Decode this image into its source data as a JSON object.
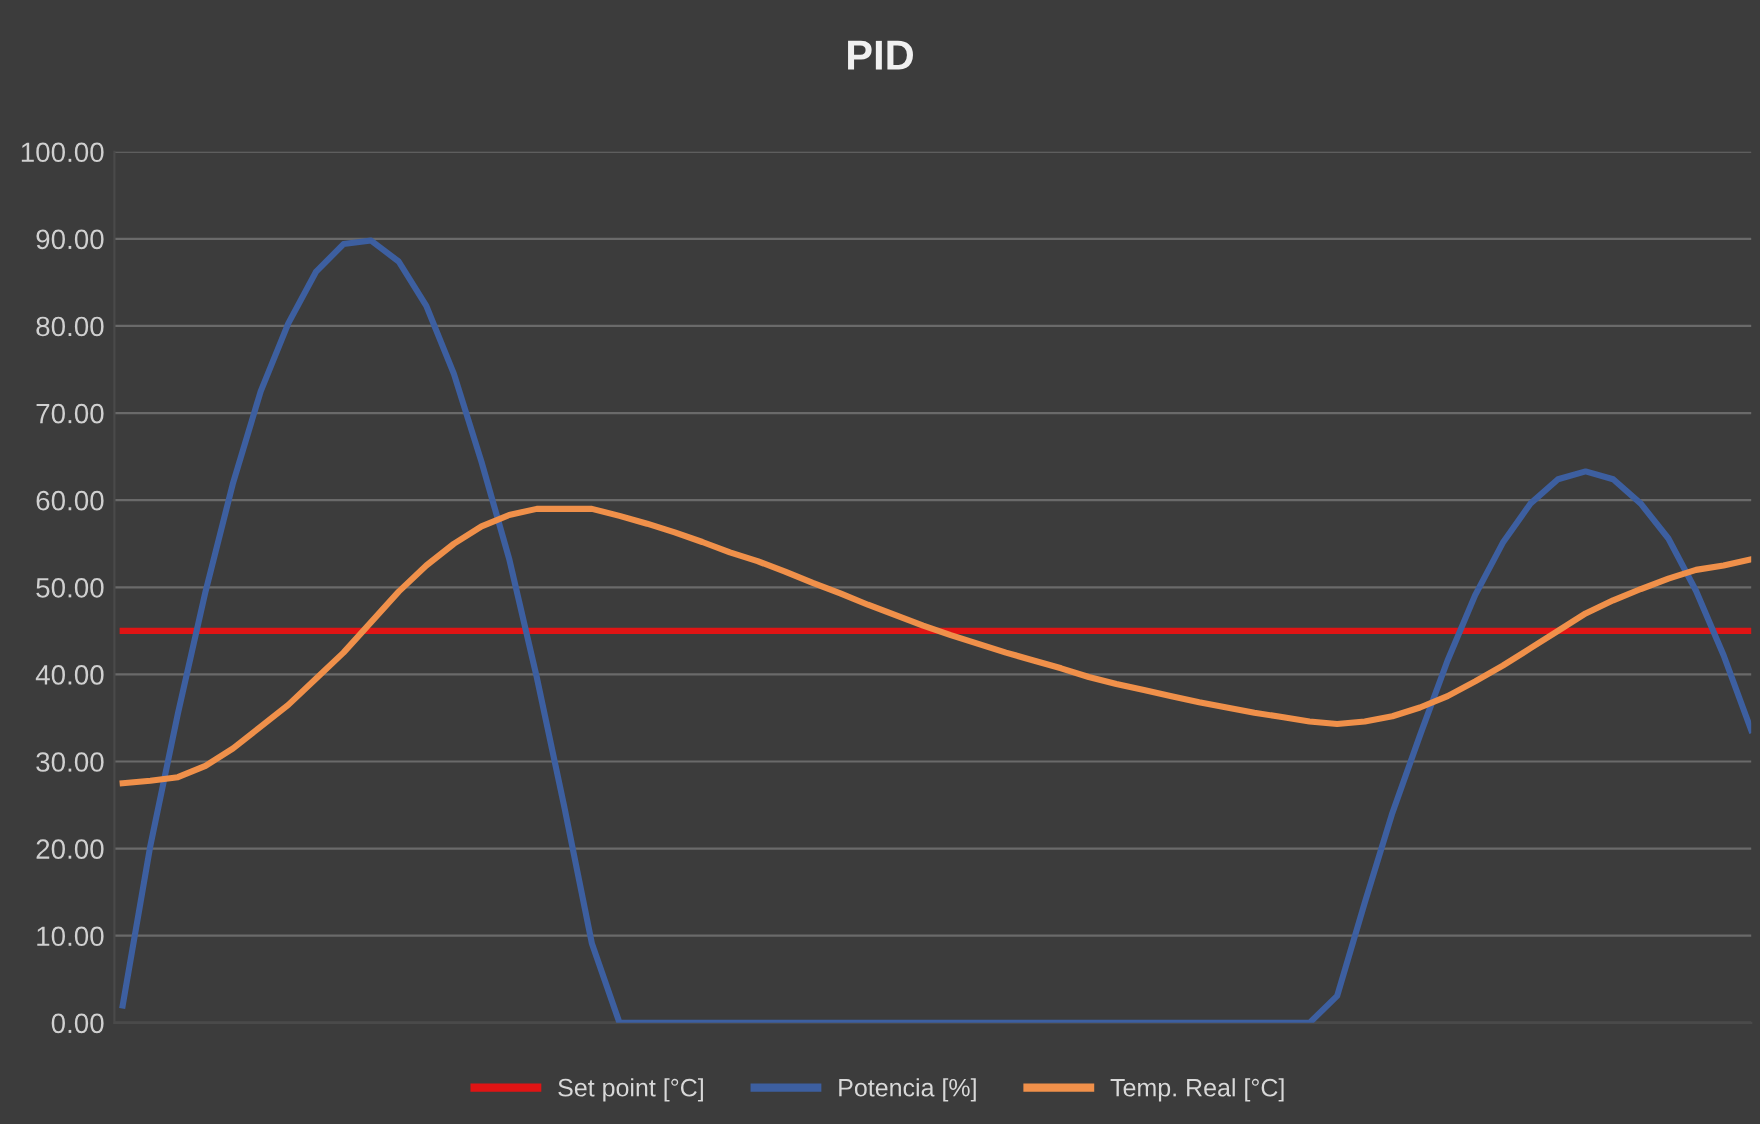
{
  "chart_data": {
    "type": "line",
    "title": "PID",
    "categories": [
      null,
      null,
      null,
      null,
      null,
      null,
      null,
      null,
      null,
      null,
      null,
      null,
      null,
      null,
      null,
      null,
      null,
      null,
      null,
      null,
      null,
      null,
      null,
      null,
      null,
      null,
      null,
      null,
      null,
      null,
      null,
      null,
      null,
      null,
      null,
      null,
      null,
      null,
      null,
      null,
      null,
      null,
      null,
      null,
      null,
      null,
      null,
      null,
      null,
      null,
      null,
      null,
      null,
      null,
      null,
      null,
      null,
      null,
      null,
      null
    ],
    "series": [
      {
        "name": "Set point [°C]",
        "color": "#e01414",
        "values": [
          45,
          45,
          45,
          45,
          45,
          45,
          45,
          45,
          45,
          45,
          45,
          45,
          45,
          45,
          45,
          45,
          45,
          45,
          45,
          45,
          45,
          45,
          45,
          45,
          45,
          45,
          45,
          45,
          45,
          45,
          45,
          45,
          45,
          45,
          45,
          45,
          45,
          45,
          45,
          45,
          45,
          45,
          45,
          45,
          45,
          45,
          45,
          45,
          45,
          45,
          45,
          45,
          45,
          45,
          45,
          45,
          45,
          45,
          45,
          45
        ]
      },
      {
        "name": "Potencia [%]",
        "color": "#3d5fa0",
        "values": [
          2,
          20.3,
          35.5,
          49.5,
          62,
          72.5,
          80.3,
          86.2,
          89.4,
          89.8,
          87.4,
          82.3,
          74.5,
          64.4,
          53.3,
          39.7,
          24.8,
          9.1,
          0,
          0,
          0,
          0,
          0,
          0,
          0,
          0,
          0,
          0,
          0,
          0,
          0,
          0,
          0,
          0,
          0,
          0,
          0,
          0,
          0,
          0,
          0,
          0,
          0,
          0,
          3.1,
          13.8,
          24.1,
          33,
          41.6,
          49.1,
          55.1,
          59.6,
          62.4,
          63.3,
          62.4,
          59.6,
          55.6,
          49.6,
          42.2,
          33.6
        ]
      },
      {
        "name": "Temp. Real [°C]",
        "color": "#f0904a",
        "values": [
          27.5,
          27.8,
          28.2,
          29.5,
          31.5,
          34,
          36.5,
          39.5,
          42.5,
          46,
          49.5,
          52.5,
          55,
          57,
          58.3,
          59,
          59,
          59,
          58.2,
          57.3,
          56.3,
          55.2,
          54,
          53,
          51.8,
          50.5,
          49.3,
          48,
          46.8,
          45.6,
          44.5,
          43.5,
          42.5,
          41.6,
          40.7,
          39.7,
          38.9,
          38.2,
          37.5,
          36.8,
          36.2,
          35.6,
          35.1,
          34.6,
          34.3,
          34.6,
          35.2,
          36.2,
          37.5,
          39.2,
          41,
          43,
          45,
          47,
          48.5,
          49.8,
          51,
          52,
          52.5,
          53.2
        ]
      }
    ],
    "ylim": [
      0,
      100
    ],
    "yticks": [
      {
        "value": 0,
        "label": "0.00"
      },
      {
        "value": 10,
        "label": "10.00"
      },
      {
        "value": 20,
        "label": "20.00"
      },
      {
        "value": 30,
        "label": "30.00"
      },
      {
        "value": 40,
        "label": "40.00"
      },
      {
        "value": 50,
        "label": "50.00"
      },
      {
        "value": 60,
        "label": "60.00"
      },
      {
        "value": 70,
        "label": "70.00"
      },
      {
        "value": 80,
        "label": "80.00"
      },
      {
        "value": 90,
        "label": "90.00"
      },
      {
        "value": 100,
        "label": "100.00"
      }
    ],
    "grid": "y",
    "legend": "bottom",
    "tick_labels": "y",
    "line_style": "solid"
  }
}
